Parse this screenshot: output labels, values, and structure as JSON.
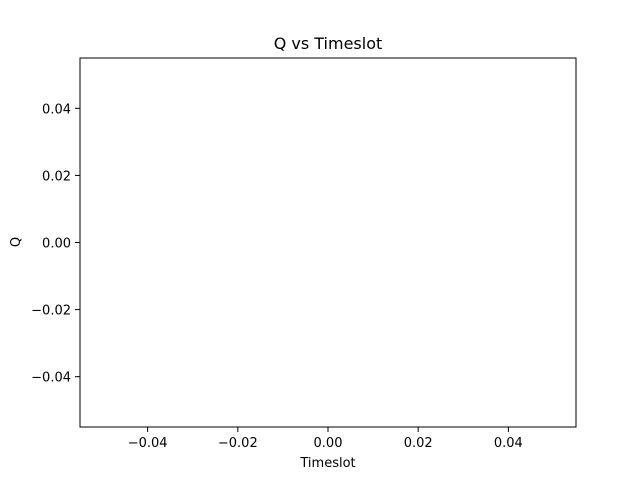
{
  "chart_data": {
    "type": "line",
    "title": "Q vs Timeslot",
    "xlabel": "Timeslot",
    "ylabel": "Q",
    "xlim": [
      -0.055,
      0.055
    ],
    "ylim": [
      -0.055,
      0.055
    ],
    "xticks": [
      -0.04,
      -0.02,
      0.0,
      0.02,
      0.04
    ],
    "xtick_labels": [
      "−0.04",
      "−0.02",
      "0.00",
      "0.02",
      "0.04"
    ],
    "yticks": [
      0.04,
      0.02,
      0.0,
      -0.02,
      -0.04
    ],
    "ytick_labels": [
      "0.04",
      "0.02",
      "0.00",
      "−0.02",
      "−0.04"
    ],
    "grid": false,
    "series": [
      {
        "x": [],
        "y": []
      }
    ]
  }
}
